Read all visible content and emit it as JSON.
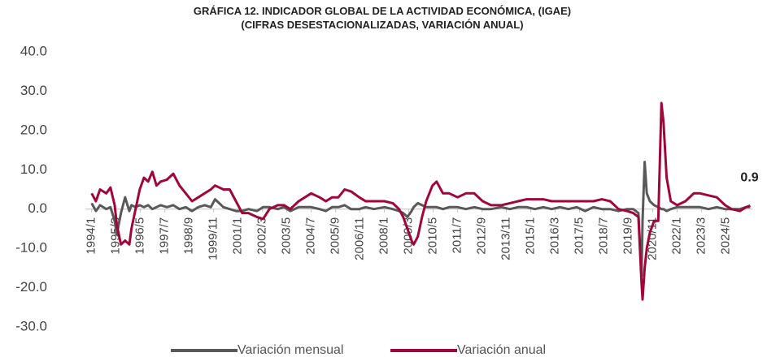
{
  "chart_data": {
    "type": "line",
    "title": "GRÁFICA 12. INDICADOR GLOBAL DE LA ACTIVIDAD ECONÓMICA, (IGAE)",
    "subtitle": "(CIFRAS DESESTACIONALIZADAS, VARIACIÓN ANUAL)",
    "x": [
      1994.0,
      1994.2,
      1994.4,
      1994.7,
      1994.9,
      1995.1,
      1995.2,
      1995.4,
      1995.6,
      1995.8,
      1995.9,
      1996.1,
      1996.3,
      1996.5,
      1996.7,
      1996.9,
      1997.1,
      1997.3,
      1997.6,
      1997.9,
      1998.2,
      1998.5,
      1998.8,
      1999.1,
      1999.4,
      1999.7,
      1999.9,
      2000.3,
      2000.6,
      2000.9,
      2001.2,
      2001.5,
      2001.9,
      2002.2,
      2002.5,
      2002.9,
      2003.2,
      2003.5,
      2003.9,
      2004.2,
      2004.5,
      2004.9,
      2005.2,
      2005.5,
      2005.8,
      2006.1,
      2006.4,
      2006.8,
      2007.1,
      2007.5,
      2008.0,
      2008.4,
      2008.7,
      2008.9,
      2009.1,
      2009.3,
      2009.4,
      2009.6,
      2009.8,
      2010.0,
      2010.3,
      2010.5,
      2010.8,
      2011.1,
      2011.5,
      2011.9,
      2012.3,
      2012.7,
      2013.1,
      2013.6,
      2014.0,
      2014.4,
      2014.8,
      2015.2,
      2015.6,
      2016.0,
      2016.4,
      2016.8,
      2017.2,
      2017.6,
      2018.0,
      2018.4,
      2018.8,
      2019.2,
      2019.6,
      2019.9,
      2020.15,
      2020.3,
      2020.35,
      2020.45,
      2020.55,
      2020.7,
      2020.9,
      2021.1,
      2021.25,
      2021.35,
      2021.5,
      2021.7,
      2022.0,
      2022.4,
      2022.8,
      2023.1,
      2023.5,
      2023.9,
      2024.3,
      2024.6,
      2025.0,
      2025.3,
      2025.5
    ],
    "series": [
      {
        "name": "Variación mensual",
        "color": "#595959",
        "values": [
          1.5,
          -0.5,
          1,
          0,
          0.5,
          -3,
          -6.5,
          -1,
          3,
          -0.5,
          1,
          0.5,
          1,
          0.5,
          1,
          0,
          0.5,
          1,
          0.5,
          1,
          0,
          0.5,
          -0.5,
          0.5,
          1,
          0.5,
          2.5,
          0.5,
          0,
          -0.5,
          -0.5,
          0,
          -0.5,
          0.5,
          0.5,
          0,
          0.5,
          -0.5,
          0.5,
          0.5,
          0.5,
          0,
          -0.5,
          0.5,
          0.5,
          1,
          0,
          0,
          0.5,
          0,
          0.5,
          0,
          -0.5,
          -1,
          -2,
          -0.5,
          0.5,
          1.5,
          1,
          0.5,
          0.5,
          0.5,
          0,
          0.5,
          0.5,
          0,
          0.5,
          0,
          0,
          0.5,
          0,
          0.5,
          0.5,
          0,
          0.5,
          0,
          0.5,
          0,
          0.5,
          -0.5,
          0.5,
          0,
          0,
          -0.5,
          0,
          0,
          -1,
          -17,
          -3,
          12,
          4,
          2,
          1,
          0.5,
          0,
          0,
          -0.5,
          0,
          0.5,
          0.5,
          0.5,
          0.5,
          0,
          0.5,
          0,
          0,
          0,
          0.5,
          0.5
        ]
      },
      {
        "name": "Variación anual",
        "color": "#a0063a",
        "values": [
          4,
          2,
          5,
          4,
          5.5,
          1,
          -4,
          -9,
          -8,
          -9,
          -5,
          0,
          5,
          8,
          7,
          9.5,
          6,
          7,
          7.5,
          9,
          6,
          4,
          2,
          3,
          4,
          5,
          6,
          5,
          5,
          2,
          -1,
          -1,
          -2,
          -2.5,
          0,
          1,
          1,
          0,
          2,
          3,
          4,
          3,
          2,
          3,
          3,
          5,
          4.5,
          3,
          2,
          2,
          2,
          1.5,
          0,
          -2,
          -5,
          -8,
          -9,
          -7,
          -2,
          2,
          6,
          7,
          4,
          4,
          3,
          4,
          4,
          2,
          1,
          1,
          1.5,
          2,
          2.5,
          2.5,
          2.5,
          2,
          2,
          2,
          2,
          2,
          2,
          2.5,
          2,
          0,
          -0.5,
          -1,
          -2,
          -19,
          -23,
          -15,
          -10,
          -6,
          -3,
          -3,
          27,
          22,
          8,
          2,
          1,
          2,
          4,
          4,
          3.5,
          3,
          1,
          0,
          -0.5,
          0.5,
          0.9
        ]
      }
    ],
    "annotation": {
      "text": "0.9"
    },
    "xlim": [
      1993.7,
      2025.6
    ],
    "xticks": [
      {
        "value": 1994.0,
        "label": "1994/1"
      },
      {
        "value": 1995.1667,
        "label": "1995/3"
      },
      {
        "value": 1996.3333,
        "label": "1996/5"
      },
      {
        "value": 1997.5,
        "label": "1997/7"
      },
      {
        "value": 1998.6667,
        "label": "1998/9"
      },
      {
        "value": 1999.8333,
        "label": "1999/11"
      },
      {
        "value": 2001.0,
        "label": "2001/1"
      },
      {
        "value": 2002.1667,
        "label": "2002/3"
      },
      {
        "value": 2003.3333,
        "label": "2003/5"
      },
      {
        "value": 2004.5,
        "label": "2004/7"
      },
      {
        "value": 2005.6667,
        "label": "2005/9"
      },
      {
        "value": 2006.8333,
        "label": "2006/11"
      },
      {
        "value": 2008.0,
        "label": "2008/1"
      },
      {
        "value": 2009.1667,
        "label": "2009/3"
      },
      {
        "value": 2010.3333,
        "label": "2010/5"
      },
      {
        "value": 2011.5,
        "label": "2011/7"
      },
      {
        "value": 2012.6667,
        "label": "2012/9"
      },
      {
        "value": 2013.8333,
        "label": "2013/11"
      },
      {
        "value": 2015.0,
        "label": "2015/1"
      },
      {
        "value": 2016.1667,
        "label": "2016/3"
      },
      {
        "value": 2017.3333,
        "label": "2017/5"
      },
      {
        "value": 2018.5,
        "label": "2018/7"
      },
      {
        "value": 2019.6667,
        "label": "2019/9"
      },
      {
        "value": 2020.8333,
        "label": "2020/11"
      },
      {
        "value": 2022.0,
        "label": "2022/1"
      },
      {
        "value": 2023.1667,
        "label": "2023/3"
      },
      {
        "value": 2024.3333,
        "label": "2024/5"
      }
    ],
    "ylim": [
      -30,
      40
    ],
    "yticks": [
      {
        "value": -30,
        "label": "-30.0"
      },
      {
        "value": -20,
        "label": "-20.0"
      },
      {
        "value": -10,
        "label": "-10.0"
      },
      {
        "value": 0,
        "label": "0.0"
      },
      {
        "value": 10,
        "label": "10.0"
      },
      {
        "value": 20,
        "label": "20.0"
      },
      {
        "value": 30,
        "label": "30.0"
      },
      {
        "value": 40,
        "label": "40.0"
      }
    ],
    "grid": false,
    "legend": "bottom"
  }
}
